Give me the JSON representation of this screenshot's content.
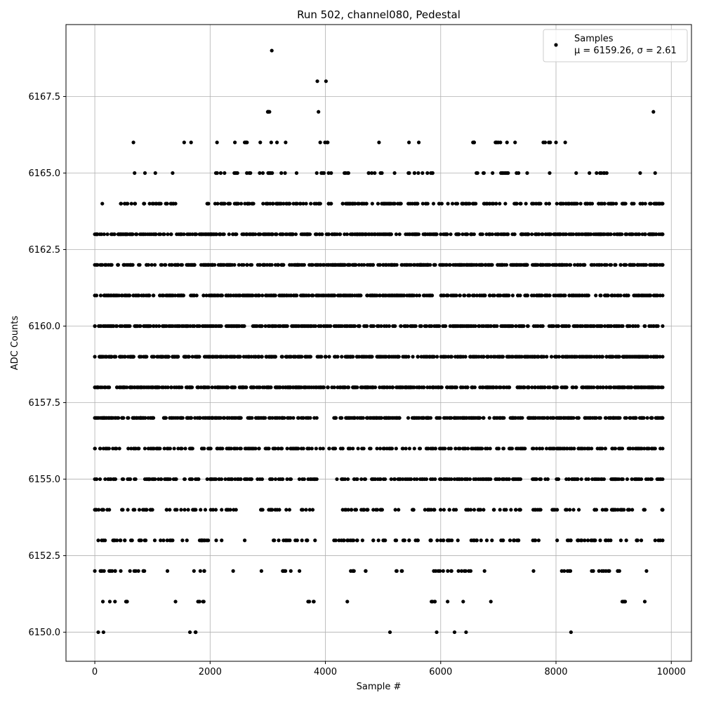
{
  "chart_data": {
    "type": "scatter",
    "title": "Run 502, channel080, Pedestal",
    "xlabel": "Sample #",
    "ylabel": "ADC Counts",
    "xlim": [
      -500,
      10350
    ],
    "ylim": [
      6149.05,
      6169.85
    ],
    "xticks": [
      0,
      2000,
      4000,
      6000,
      8000,
      10000
    ],
    "yticks": [
      6150.0,
      6152.5,
      6155.0,
      6157.5,
      6160.0,
      6162.5,
      6165.0,
      6167.5
    ],
    "xtick_labels": [
      "0",
      "2000",
      "4000",
      "6000",
      "8000",
      "10000"
    ],
    "ytick_labels": [
      "6150.0",
      "6152.5",
      "6155.0",
      "6157.5",
      "6160.0",
      "6162.5",
      "6165.0",
      "6167.5"
    ],
    "grid": true,
    "legend_position": "top-right",
    "marker_color": "#000000",
    "series": [
      {
        "name": "Samples",
        "stats_label": "μ = 6159.26, σ = 2.61",
        "x_range": [
          0,
          9850
        ],
        "n_points": 9851,
        "level_ranges": [
          {
            "y": 6150,
            "x": [
              [
                60,
                60
              ],
              [
                150,
                150
              ],
              [
                1650,
                1750
              ],
              [
                5120,
                5120
              ],
              [
                5930,
                5930
              ],
              [
                6240,
                6240
              ],
              [
                6440,
                6440
              ],
              [
                8260,
                8260
              ]
            ]
          },
          {
            "y": 6151,
            "x": [
              [
                140,
                140
              ],
              [
                260,
                260
              ],
              [
                350,
                350
              ],
              [
                540,
                560
              ],
              [
                1400,
                1400
              ],
              [
                1790,
                1890
              ],
              [
                3700,
                3800
              ],
              [
                4380,
                4380
              ],
              [
                5840,
                5900
              ],
              [
                6120,
                6120
              ],
              [
                6390,
                6390
              ],
              [
                6870,
                6870
              ],
              [
                9150,
                9200
              ],
              [
                9540,
                9540
              ]
            ]
          },
          {
            "y": 6152,
            "x": [
              [
                0,
                160
              ],
              [
                250,
                450
              ],
              [
                610,
                860
              ],
              [
                1260,
                1260
              ],
              [
                1720,
                1900
              ],
              [
                2400,
                2400
              ],
              [
                2890,
                2890
              ],
              [
                3260,
                3400
              ],
              [
                3550,
                3550
              ],
              [
                4440,
                4700
              ],
              [
                5230,
                5330
              ],
              [
                5880,
                6520
              ],
              [
                6760,
                6760
              ],
              [
                7610,
                7610
              ],
              [
                8100,
                8250
              ],
              [
                8620,
                9100
              ],
              [
                9570,
                9570
              ]
            ]
          },
          {
            "y": 6153,
            "x": [
              [
                60,
                1040
              ],
              [
                1140,
                1350
              ],
              [
                1520,
                2200
              ],
              [
                2600,
                2600
              ],
              [
                3100,
                3820
              ],
              [
                4150,
                5230
              ],
              [
                5350,
                5940
              ],
              [
                6000,
                6700
              ],
              [
                6800,
                7350
              ],
              [
                7600,
                7700
              ],
              [
                8020,
                9480
              ],
              [
                9720,
                9850
              ]
            ]
          },
          {
            "y": 6154,
            "x": [
              [
                0,
                1620
              ],
              [
                1700,
                2100
              ],
              [
                2200,
                2450
              ],
              [
                2880,
                3780
              ],
              [
                4300,
                7980
              ],
              [
                8020,
                9540
              ],
              [
                9840,
                9850
              ]
            ]
          },
          {
            "y": 6155,
            "x": [
              [
                0,
                1800
              ],
              [
                1950,
                3850
              ],
              [
                4200,
                9850
              ]
            ]
          },
          {
            "y": 6156,
            "x": [
              [
                0,
                4300
              ],
              [
                4400,
                9850
              ]
            ]
          },
          {
            "y": 6157,
            "x": [
              [
                0,
                3850
              ],
              [
                4150,
                9850
              ]
            ]
          },
          {
            "y": 6158,
            "x": [
              [
                0,
                9850
              ]
            ]
          },
          {
            "y": 6159,
            "x": [
              [
                0,
                9850
              ]
            ]
          },
          {
            "y": 6160,
            "x": [
              [
                0,
                9850
              ]
            ]
          },
          {
            "y": 6161,
            "x": [
              [
                0,
                9850
              ]
            ]
          },
          {
            "y": 6162,
            "x": [
              [
                0,
                9850
              ]
            ]
          },
          {
            "y": 6163,
            "x": [
              [
                0,
                9850
              ]
            ]
          },
          {
            "y": 6164,
            "x": [
              [
                130,
                130
              ],
              [
                450,
                700
              ],
              [
                850,
                1400
              ],
              [
                1950,
                4100
              ],
              [
                4300,
                9850
              ]
            ]
          },
          {
            "y": 6165,
            "x": [
              [
                690,
                690
              ],
              [
                870,
                870
              ],
              [
                1050,
                1050
              ],
              [
                1350,
                1350
              ],
              [
                2100,
                2250
              ],
              [
                2420,
                2700
              ],
              [
                2860,
                3300
              ],
              [
                3500,
                3500
              ],
              [
                3850,
                4100
              ],
              [
                4330,
                4400
              ],
              [
                4750,
                4980
              ],
              [
                5200,
                5200
              ],
              [
                5440,
                5860
              ],
              [
                6620,
                6750
              ],
              [
                6900,
                7350
              ],
              [
                7500,
                7500
              ],
              [
                7890,
                7890
              ],
              [
                8350,
                8350
              ],
              [
                8580,
                8880
              ],
              [
                9460,
                9460
              ],
              [
                9720,
                9720
              ]
            ]
          },
          {
            "y": 6166,
            "x": [
              [
                670,
                670
              ],
              [
                1550,
                1550
              ],
              [
                1670,
                1670
              ],
              [
                2120,
                2120
              ],
              [
                2430,
                2430
              ],
              [
                2600,
                2640
              ],
              [
                2870,
                2870
              ],
              [
                3060,
                3060
              ],
              [
                3160,
                3160
              ],
              [
                3310,
                3310
              ],
              [
                3910,
                4040
              ],
              [
                4930,
                4930
              ],
              [
                5450,
                5450
              ],
              [
                5620,
                5620
              ],
              [
                6560,
                6580
              ],
              [
                6950,
                7150
              ],
              [
                7290,
                7290
              ],
              [
                7780,
                7900
              ],
              [
                8000,
                8000
              ],
              [
                8160,
                8160
              ]
            ]
          },
          {
            "y": 6167,
            "x": [
              [
                3000,
                3030
              ],
              [
                3880,
                3880
              ],
              [
                9690,
                9690
              ]
            ]
          },
          {
            "y": 6168,
            "x": [
              [
                3860,
                3860
              ],
              [
                4010,
                4010
              ]
            ]
          },
          {
            "y": 6169,
            "x": [
              [
                3070,
                3070
              ]
            ]
          }
        ]
      }
    ]
  }
}
